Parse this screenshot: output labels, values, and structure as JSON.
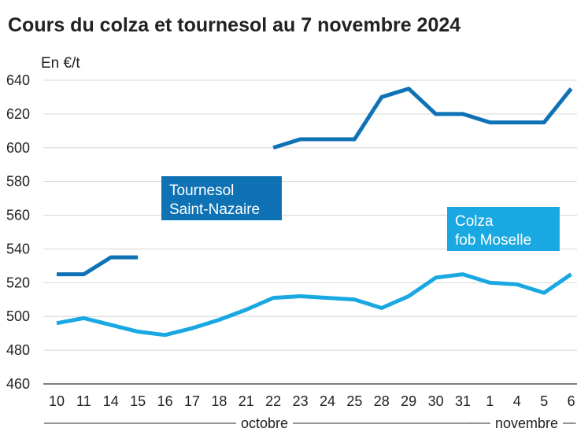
{
  "chart_data": {
    "type": "line",
    "title": "Cours du colza et tournesol au 7 novembre 2024",
    "ylabel": "En €/t",
    "ylim": [
      460,
      640
    ],
    "yticks": [
      "640",
      "620",
      "600",
      "580",
      "560",
      "540",
      "520",
      "500",
      "480",
      "460"
    ],
    "categories": [
      "10",
      "11",
      "14",
      "15",
      "16",
      "17",
      "18",
      "21",
      "22",
      "23",
      "24",
      "25",
      "28",
      "29",
      "30",
      "31",
      "1",
      "4",
      "5",
      "6"
    ],
    "months": [
      {
        "label": "octobre",
        "start": 0,
        "end": 15
      },
      {
        "label": "novembre",
        "start": 16,
        "end": 19
      }
    ],
    "grid": true,
    "series": [
      {
        "name_lines": [
          "Tournesol",
          "Saint-Nazaire"
        ],
        "color": "#0e72b5",
        "values": [
          525,
          525,
          535,
          535,
          null,
          null,
          null,
          null,
          600,
          605,
          605,
          605,
          630,
          635,
          620,
          620,
          615,
          615,
          615,
          635
        ]
      },
      {
        "name_lines": [
          "Colza",
          "fob Moselle"
        ],
        "color": "#1aa8e2",
        "values": [
          496,
          499,
          495,
          491,
          489,
          493,
          498,
          504,
          511,
          512,
          511,
          510,
          505,
          512,
          523,
          525,
          520,
          519,
          514,
          525
        ]
      }
    ]
  }
}
